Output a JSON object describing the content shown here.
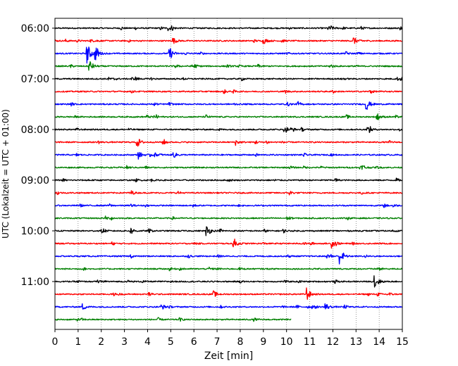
{
  "chart_data": {
    "type": "line",
    "plot_kind": "seismogram helicorder",
    "title": "",
    "xlabel": "Zeit  [min]",
    "ylabel": "UTC (Lokalzeit = UTC + 01:00)",
    "xlim": [
      0,
      15
    ],
    "xticks": [
      "0",
      "1",
      "2",
      "3",
      "4",
      "5",
      "6",
      "7",
      "8",
      "9",
      "10",
      "11",
      "12",
      "13",
      "14",
      "15"
    ],
    "yticks": [
      "06:00",
      "07:00",
      "08:00",
      "09:00",
      "10:00",
      "11:00"
    ],
    "grid": "vertical dotted",
    "trace_colors": [
      "#000000",
      "#ff0000",
      "#0000ff",
      "#008000"
    ],
    "row_start_times": [
      "06:00",
      "06:15",
      "06:30",
      "06:45",
      "07:00",
      "07:15",
      "07:30",
      "07:45",
      "08:00",
      "08:15",
      "08:30",
      "08:45",
      "09:00",
      "09:15",
      "09:30",
      "09:45",
      "10:00",
      "10:15",
      "10:30",
      "10:45",
      "11:00",
      "11:15",
      "11:30",
      "11:45"
    ],
    "last_row_end_min": 10.2,
    "events": [
      {
        "row": 0,
        "t": 4.9,
        "amp": 0.35
      },
      {
        "row": 0,
        "t": 11.9,
        "amp": 0.3
      },
      {
        "row": 1,
        "t": 5.1,
        "amp": 0.45
      },
      {
        "row": 1,
        "t": 9.0,
        "amp": 0.45
      },
      {
        "row": 1,
        "t": 12.9,
        "amp": 0.55
      },
      {
        "row": 2,
        "t": 1.4,
        "amp": 1.5
      },
      {
        "row": 2,
        "t": 1.75,
        "amp": 0.9
      },
      {
        "row": 2,
        "t": 4.95,
        "amp": 0.95
      },
      {
        "row": 3,
        "t": 1.5,
        "amp": 0.6
      },
      {
        "row": 3,
        "t": 5.95,
        "amp": 0.5
      },
      {
        "row": 6,
        "t": 13.45,
        "amp": 0.9
      },
      {
        "row": 7,
        "t": 13.9,
        "amp": 0.55
      },
      {
        "row": 8,
        "t": 13.5,
        "amp": 0.4
      },
      {
        "row": 9,
        "t": 3.55,
        "amp": 0.75
      },
      {
        "row": 9,
        "t": 7.8,
        "amp": 0.4
      },
      {
        "row": 10,
        "t": 3.6,
        "amp": 0.55
      },
      {
        "row": 10,
        "t": 5.1,
        "amp": 0.5
      },
      {
        "row": 11,
        "t": 13.3,
        "amp": 0.3
      },
      {
        "row": 16,
        "t": 3.3,
        "amp": 0.4
      },
      {
        "row": 16,
        "t": 6.55,
        "amp": 0.7
      },
      {
        "row": 17,
        "t": 7.7,
        "amp": 0.95
      },
      {
        "row": 17,
        "t": 11.95,
        "amp": 0.6
      },
      {
        "row": 18,
        "t": 12.3,
        "amp": 0.85
      },
      {
        "row": 20,
        "t": 13.8,
        "amp": 1.3
      },
      {
        "row": 21,
        "t": 6.85,
        "amp": 0.45
      },
      {
        "row": 21,
        "t": 10.85,
        "amp": 1.1
      },
      {
        "row": 22,
        "t": 1.2,
        "amp": 0.45
      },
      {
        "row": 22,
        "t": 4.6,
        "amp": 0.4
      },
      {
        "row": 22,
        "t": 11.65,
        "amp": 0.75
      }
    ]
  }
}
